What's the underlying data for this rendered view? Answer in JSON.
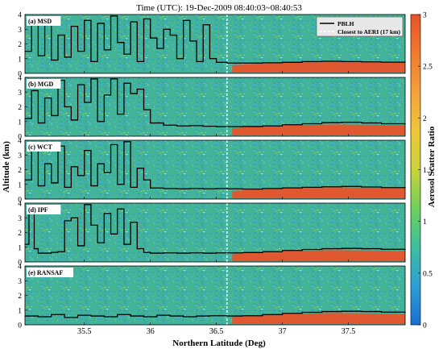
{
  "title": "Time (UTC): 19-Dec-2009 08:40:03~08:40:53",
  "xlabel": "Northern Latitude (Deg)",
  "ylabel": "Altitude (km)",
  "colorbar_label": "Aerosol Scatter Ratio",
  "legend": {
    "pblh": "PBLH",
    "closest": "Closest to AERI (17 km)"
  },
  "colors": {
    "scale": [
      "#1a6fd1",
      "#2b9fd6",
      "#3cbfa0",
      "#6fd05a",
      "#c8d23a",
      "#f0c53a",
      "#f3a13a",
      "#f07a2e",
      "#e8532a"
    ],
    "pblh_line": "#000000",
    "aeri_line": "#ffffff"
  },
  "chart_data": {
    "type": "heatmap",
    "title": "Time (UTC): 19-Dec-2009 08:40:03~08:40:53",
    "xlabel": "Northern Latitude (Deg)",
    "ylabel": "Altitude (km)",
    "xlim": [
      35.05,
      37.93
    ],
    "ylim": [
      0,
      4
    ],
    "xticks": [
      "35.5",
      "36",
      "36.5",
      "37",
      "37.5"
    ],
    "xtick_values": [
      35.5,
      36,
      36.5,
      37,
      37.5
    ],
    "yticks": [
      "0",
      "1",
      "2",
      "3",
      "4"
    ],
    "colorbar": {
      "label": "Aerosol Scatter Ratio",
      "range": [
        0,
        3
      ],
      "ticks": [
        "0",
        "0.5",
        "1",
        "1.5",
        "2",
        "2.5",
        "3"
      ]
    },
    "aeri_latitude": 36.58,
    "aerosol_layer": {
      "lat_start": 36.62,
      "lat_end": 37.93,
      "bottom_km": 0.05,
      "top_km": 0.75
    },
    "panels": [
      {
        "label": "(a) MSD",
        "pblh": [
          [
            35.05,
            1.5
          ],
          [
            35.1,
            3.3
          ],
          [
            35.15,
            1.2
          ],
          [
            35.2,
            3.8
          ],
          [
            35.25,
            0.9
          ],
          [
            35.3,
            2.6
          ],
          [
            35.35,
            1.1
          ],
          [
            35.4,
            3.2
          ],
          [
            35.45,
            1.5
          ],
          [
            35.5,
            3.6
          ],
          [
            35.55,
            0.8
          ],
          [
            35.6,
            3.4
          ],
          [
            35.65,
            1.6
          ],
          [
            35.7,
            3.9
          ],
          [
            35.75,
            2.1
          ],
          [
            35.8,
            1.3
          ],
          [
            35.85,
            3.5
          ],
          [
            35.9,
            0.8
          ],
          [
            35.95,
            3.7
          ],
          [
            36.0,
            2.4
          ],
          [
            36.05,
            1.7
          ],
          [
            36.1,
            3.0
          ],
          [
            36.15,
            2.6
          ],
          [
            36.2,
            1.0
          ],
          [
            36.25,
            3.6
          ],
          [
            36.3,
            2.2
          ],
          [
            36.35,
            0.8
          ],
          [
            36.4,
            3.3
          ],
          [
            36.45,
            1.0
          ],
          [
            36.5,
            0.75
          ],
          [
            36.58,
            0.7
          ],
          [
            36.7,
            0.7
          ],
          [
            36.85,
            0.72
          ],
          [
            37.0,
            0.75
          ],
          [
            37.15,
            0.8
          ],
          [
            37.3,
            0.82
          ],
          [
            37.45,
            0.8
          ],
          [
            37.6,
            0.78
          ],
          [
            37.75,
            0.76
          ],
          [
            37.93,
            0.75
          ]
        ]
      },
      {
        "label": "(b) MGD",
        "pblh": [
          [
            35.05,
            1.2
          ],
          [
            35.1,
            3.1
          ],
          [
            35.15,
            0.9
          ],
          [
            35.2,
            2.6
          ],
          [
            35.25,
            1.4
          ],
          [
            35.3,
            3.8
          ],
          [
            35.35,
            2.0
          ],
          [
            35.4,
            1.1
          ],
          [
            35.45,
            3.5
          ],
          [
            35.5,
            2.3
          ],
          [
            35.55,
            3.9
          ],
          [
            35.6,
            1.0
          ],
          [
            35.65,
            2.8
          ],
          [
            35.7,
            3.9
          ],
          [
            35.75,
            1.5
          ],
          [
            35.8,
            3.6
          ],
          [
            35.85,
            2.9
          ],
          [
            35.9,
            3.2
          ],
          [
            35.95,
            1.8
          ],
          [
            36.0,
            0.9
          ],
          [
            36.1,
            0.75
          ],
          [
            36.2,
            0.7
          ],
          [
            36.3,
            0.72
          ],
          [
            36.4,
            0.68
          ],
          [
            36.5,
            0.65
          ],
          [
            36.58,
            0.65
          ],
          [
            36.7,
            0.66
          ],
          [
            36.85,
            0.7
          ],
          [
            37.0,
            0.78
          ],
          [
            37.15,
            0.85
          ],
          [
            37.3,
            0.92
          ],
          [
            37.45,
            0.95
          ],
          [
            37.6,
            0.9
          ],
          [
            37.75,
            0.85
          ],
          [
            37.93,
            0.8
          ]
        ]
      },
      {
        "label": "(c) WCT",
        "pblh": [
          [
            35.05,
            1.3
          ],
          [
            35.1,
            3.5
          ],
          [
            35.15,
            0.9
          ],
          [
            35.2,
            2.4
          ],
          [
            35.25,
            1.1
          ],
          [
            35.3,
            3.6
          ],
          [
            35.35,
            0.8
          ],
          [
            35.4,
            2.2
          ],
          [
            35.45,
            1.6
          ],
          [
            35.5,
            3.3
          ],
          [
            35.55,
            0.9
          ],
          [
            35.6,
            2.4
          ],
          [
            35.65,
            1.8
          ],
          [
            35.7,
            3.7
          ],
          [
            35.75,
            1.0
          ],
          [
            35.8,
            3.9
          ],
          [
            35.85,
            0.8
          ],
          [
            35.9,
            2.1
          ],
          [
            35.95,
            1.3
          ],
          [
            36.0,
            0.75
          ],
          [
            36.1,
            0.72
          ],
          [
            36.2,
            0.7
          ],
          [
            36.3,
            0.72
          ],
          [
            36.4,
            0.7
          ],
          [
            36.5,
            0.72
          ],
          [
            36.58,
            0.7
          ],
          [
            36.7,
            0.68
          ],
          [
            36.85,
            0.72
          ],
          [
            37.0,
            0.76
          ],
          [
            37.15,
            0.8
          ],
          [
            37.3,
            0.84
          ],
          [
            37.45,
            0.86
          ],
          [
            37.6,
            0.82
          ],
          [
            37.75,
            0.78
          ],
          [
            37.93,
            0.75
          ]
        ]
      },
      {
        "label": "(d) IPF",
        "pblh": [
          [
            35.05,
            1.2
          ],
          [
            35.08,
            3.7
          ],
          [
            35.12,
            0.9
          ],
          [
            35.15,
            0.6
          ],
          [
            35.2,
            0.6
          ],
          [
            35.25,
            0.65
          ],
          [
            35.3,
            0.7
          ],
          [
            35.35,
            2.8
          ],
          [
            35.4,
            3.0
          ],
          [
            35.45,
            1.1
          ],
          [
            35.5,
            3.9
          ],
          [
            35.55,
            2.5
          ],
          [
            35.6,
            1.3
          ],
          [
            35.65,
            3.3
          ],
          [
            35.7,
            1.9
          ],
          [
            35.75,
            3.6
          ],
          [
            35.8,
            1.2
          ],
          [
            35.85,
            2.7
          ],
          [
            35.9,
            0.9
          ],
          [
            35.95,
            0.65
          ],
          [
            36.0,
            0.6
          ],
          [
            36.1,
            0.62
          ],
          [
            36.2,
            0.6
          ],
          [
            36.3,
            0.62
          ],
          [
            36.4,
            0.6
          ],
          [
            36.5,
            0.62
          ],
          [
            36.58,
            0.62
          ],
          [
            36.7,
            0.64
          ],
          [
            36.85,
            0.7
          ],
          [
            37.0,
            0.78
          ],
          [
            37.15,
            0.85
          ],
          [
            37.3,
            0.9
          ],
          [
            37.45,
            0.92
          ],
          [
            37.6,
            0.9
          ],
          [
            37.75,
            0.86
          ],
          [
            37.93,
            0.82
          ]
        ]
      },
      {
        "label": "(e) RANSAF",
        "pblh": [
          [
            35.05,
            0.6
          ],
          [
            35.15,
            0.55
          ],
          [
            35.25,
            0.7
          ],
          [
            35.35,
            0.5
          ],
          [
            35.45,
            0.65
          ],
          [
            35.55,
            0.6
          ],
          [
            35.65,
            0.55
          ],
          [
            35.75,
            0.7
          ],
          [
            35.85,
            0.6
          ],
          [
            35.95,
            0.55
          ],
          [
            36.05,
            0.65
          ],
          [
            36.15,
            0.6
          ],
          [
            36.25,
            0.55
          ],
          [
            36.35,
            0.6
          ],
          [
            36.45,
            0.62
          ],
          [
            36.58,
            0.6
          ],
          [
            36.7,
            0.62
          ],
          [
            36.85,
            0.7
          ],
          [
            37.0,
            0.78
          ],
          [
            37.15,
            0.85
          ],
          [
            37.3,
            0.9
          ],
          [
            37.45,
            0.92
          ],
          [
            37.6,
            0.9
          ],
          [
            37.75,
            0.86
          ],
          [
            37.93,
            0.82
          ]
        ]
      }
    ]
  }
}
